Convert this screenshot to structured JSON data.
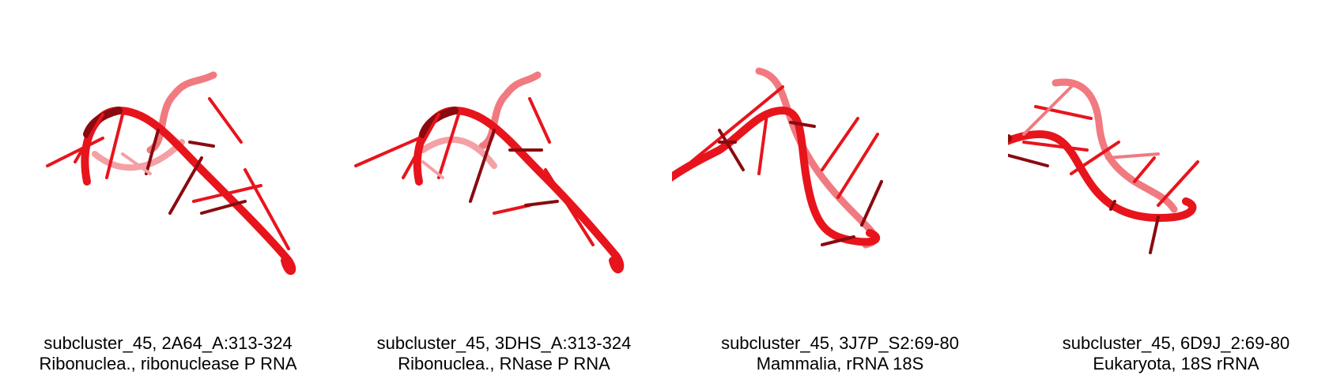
{
  "panels": [
    {
      "title": "subcluster_45, 2A64_A:313-324",
      "subtitle": "Ribonuclea., ribonuclease P RNA"
    },
    {
      "title": "subcluster_45, 3DHS_A:313-324",
      "subtitle": "Ribonuclea., RNase P RNA"
    },
    {
      "title": "subcluster_45, 3J7P_S2:69-80",
      "subtitle": "Mammalia, rRNA 18S"
    },
    {
      "title": "subcluster_45, 6D9J_2:69-80",
      "subtitle": "Eukaryota, 18S rRNA"
    }
  ],
  "colors": {
    "front": "#e8141c",
    "dark": "#8a0a0f",
    "back": "#f07a80"
  }
}
